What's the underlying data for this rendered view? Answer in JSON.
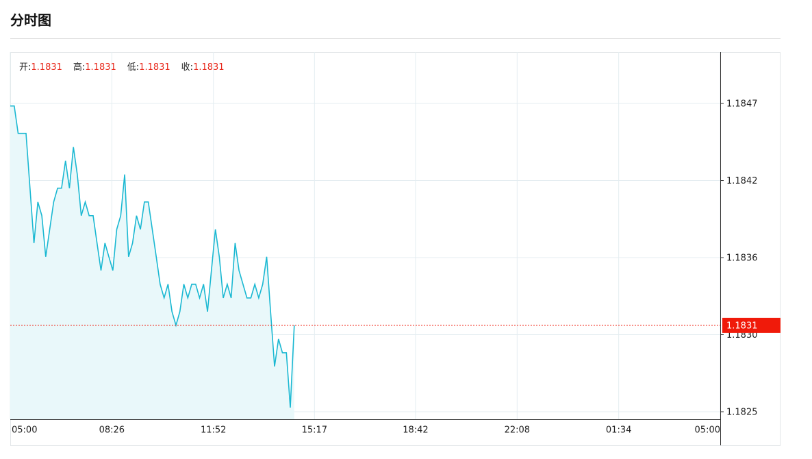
{
  "header": {
    "title": "分时图"
  },
  "quote": [
    {
      "label": "开:",
      "value": 1.1831
    },
    {
      "label": "高:",
      "value": 1.1831
    },
    {
      "label": "低:",
      "value": 1.1831
    },
    {
      "label": "收:",
      "value": 1.1831
    }
  ],
  "chart_data": {
    "type": "line",
    "x": [
      0,
      8,
      16,
      24,
      32,
      40,
      48,
      56,
      64,
      72,
      80,
      88,
      96,
      104,
      112,
      120,
      128,
      136,
      144,
      152,
      160,
      168,
      176,
      184,
      192,
      200,
      208,
      216,
      224,
      232,
      240,
      248,
      256,
      264,
      272,
      280,
      288,
      296,
      304,
      312,
      320,
      328,
      336,
      344,
      352,
      360,
      368,
      376,
      384,
      392,
      400,
      408,
      416,
      424,
      432,
      440,
      448,
      456,
      464,
      472,
      480,
      488,
      496,
      504,
      512,
      520,
      528,
      536,
      544,
      552,
      560,
      568,
      576
    ],
    "series": [
      {
        "color": "#1ab8d2",
        "fill": "#e9f8fa",
        "values": [
          1.1847,
          1.1847,
          1.1845,
          1.1845,
          1.1845,
          1.1841,
          1.1837,
          1.184,
          1.1839,
          1.1836,
          1.1838,
          1.184,
          1.1841,
          1.1841,
          1.1843,
          1.1841,
          1.1844,
          1.1842,
          1.1839,
          1.184,
          1.1839,
          1.1839,
          1.1837,
          1.1835,
          1.1837,
          1.1836,
          1.1835,
          1.1838,
          1.1839,
          1.1842,
          1.1836,
          1.1837,
          1.1839,
          1.1838,
          1.184,
          1.184,
          1.1838,
          1.1836,
          1.1834,
          1.1833,
          1.1834,
          1.1832,
          1.1831,
          1.1832,
          1.1834,
          1.1833,
          1.1834,
          1.1834,
          1.1833,
          1.1834,
          1.1832,
          1.1835,
          1.1838,
          1.1836,
          1.1833,
          1.1834,
          1.1833,
          1.1837,
          1.1835,
          1.1834,
          1.1833,
          1.1833,
          1.1834,
          1.1833,
          1.1834,
          1.1836,
          1.1832,
          1.1828,
          1.183,
          1.1829,
          1.1829,
          1.1825,
          1.1831
        ]
      }
    ],
    "current_price": 1.1831,
    "current_color": "#f01a0a",
    "xlim": [
      0,
      1440
    ],
    "xticks": [
      {
        "value": 0,
        "label": "05:00"
      },
      {
        "value": 206,
        "label": "08:26"
      },
      {
        "value": 412,
        "label": "11:52"
      },
      {
        "value": 617,
        "label": "15:17"
      },
      {
        "value": 822,
        "label": "18:42"
      },
      {
        "value": 1028,
        "label": "22:08"
      },
      {
        "value": 1234,
        "label": "01:34"
      },
      {
        "value": 1440,
        "label": "05:00"
      }
    ],
    "ylim": [
      1.182415,
      1.185093
    ],
    "yticks": [
      {
        "value": 1.18247,
        "label": "1.1825"
      },
      {
        "value": 1.183032,
        "label": "1.1830"
      },
      {
        "value": 1.183594,
        "label": "1.1836"
      },
      {
        "value": 1.184156,
        "label": "1.1842"
      },
      {
        "value": 1.184718,
        "label": "1.1847"
      }
    ],
    "grid": true
  }
}
